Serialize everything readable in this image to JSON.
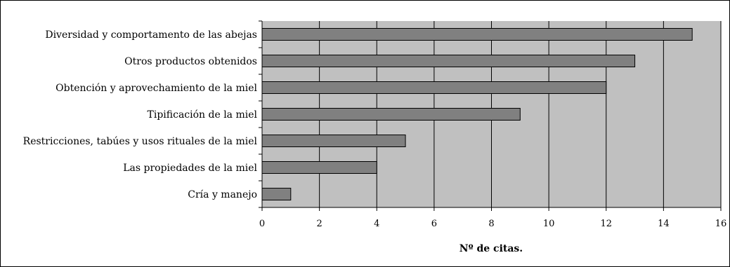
{
  "chart_data": {
    "type": "bar",
    "orientation": "horizontal",
    "categories": [
      "Diversidad y comportamento de las abejas",
      "Otros productos obtenidos",
      "Obtención y aprovechamiento de la miel",
      "Tipificación de la miel",
      "Restricciones, tabúes y usos rituales de la miel",
      "Las propiedades de la miel",
      "Cría y manejo"
    ],
    "values": [
      15,
      13,
      12,
      9,
      5,
      4,
      1
    ],
    "xlabel": "Nº de citas.",
    "ylabel": "",
    "xlim": [
      0,
      16
    ],
    "xticks": [
      "0",
      "2",
      "4",
      "6",
      "8",
      "10",
      "12",
      "14",
      "16"
    ],
    "grid": "vertical",
    "legend": "none",
    "colors": {
      "plot_background": "#c0c0c0",
      "bar_fill": "#808080",
      "bar_stroke": "#000000",
      "gridline": "#000000"
    }
  }
}
